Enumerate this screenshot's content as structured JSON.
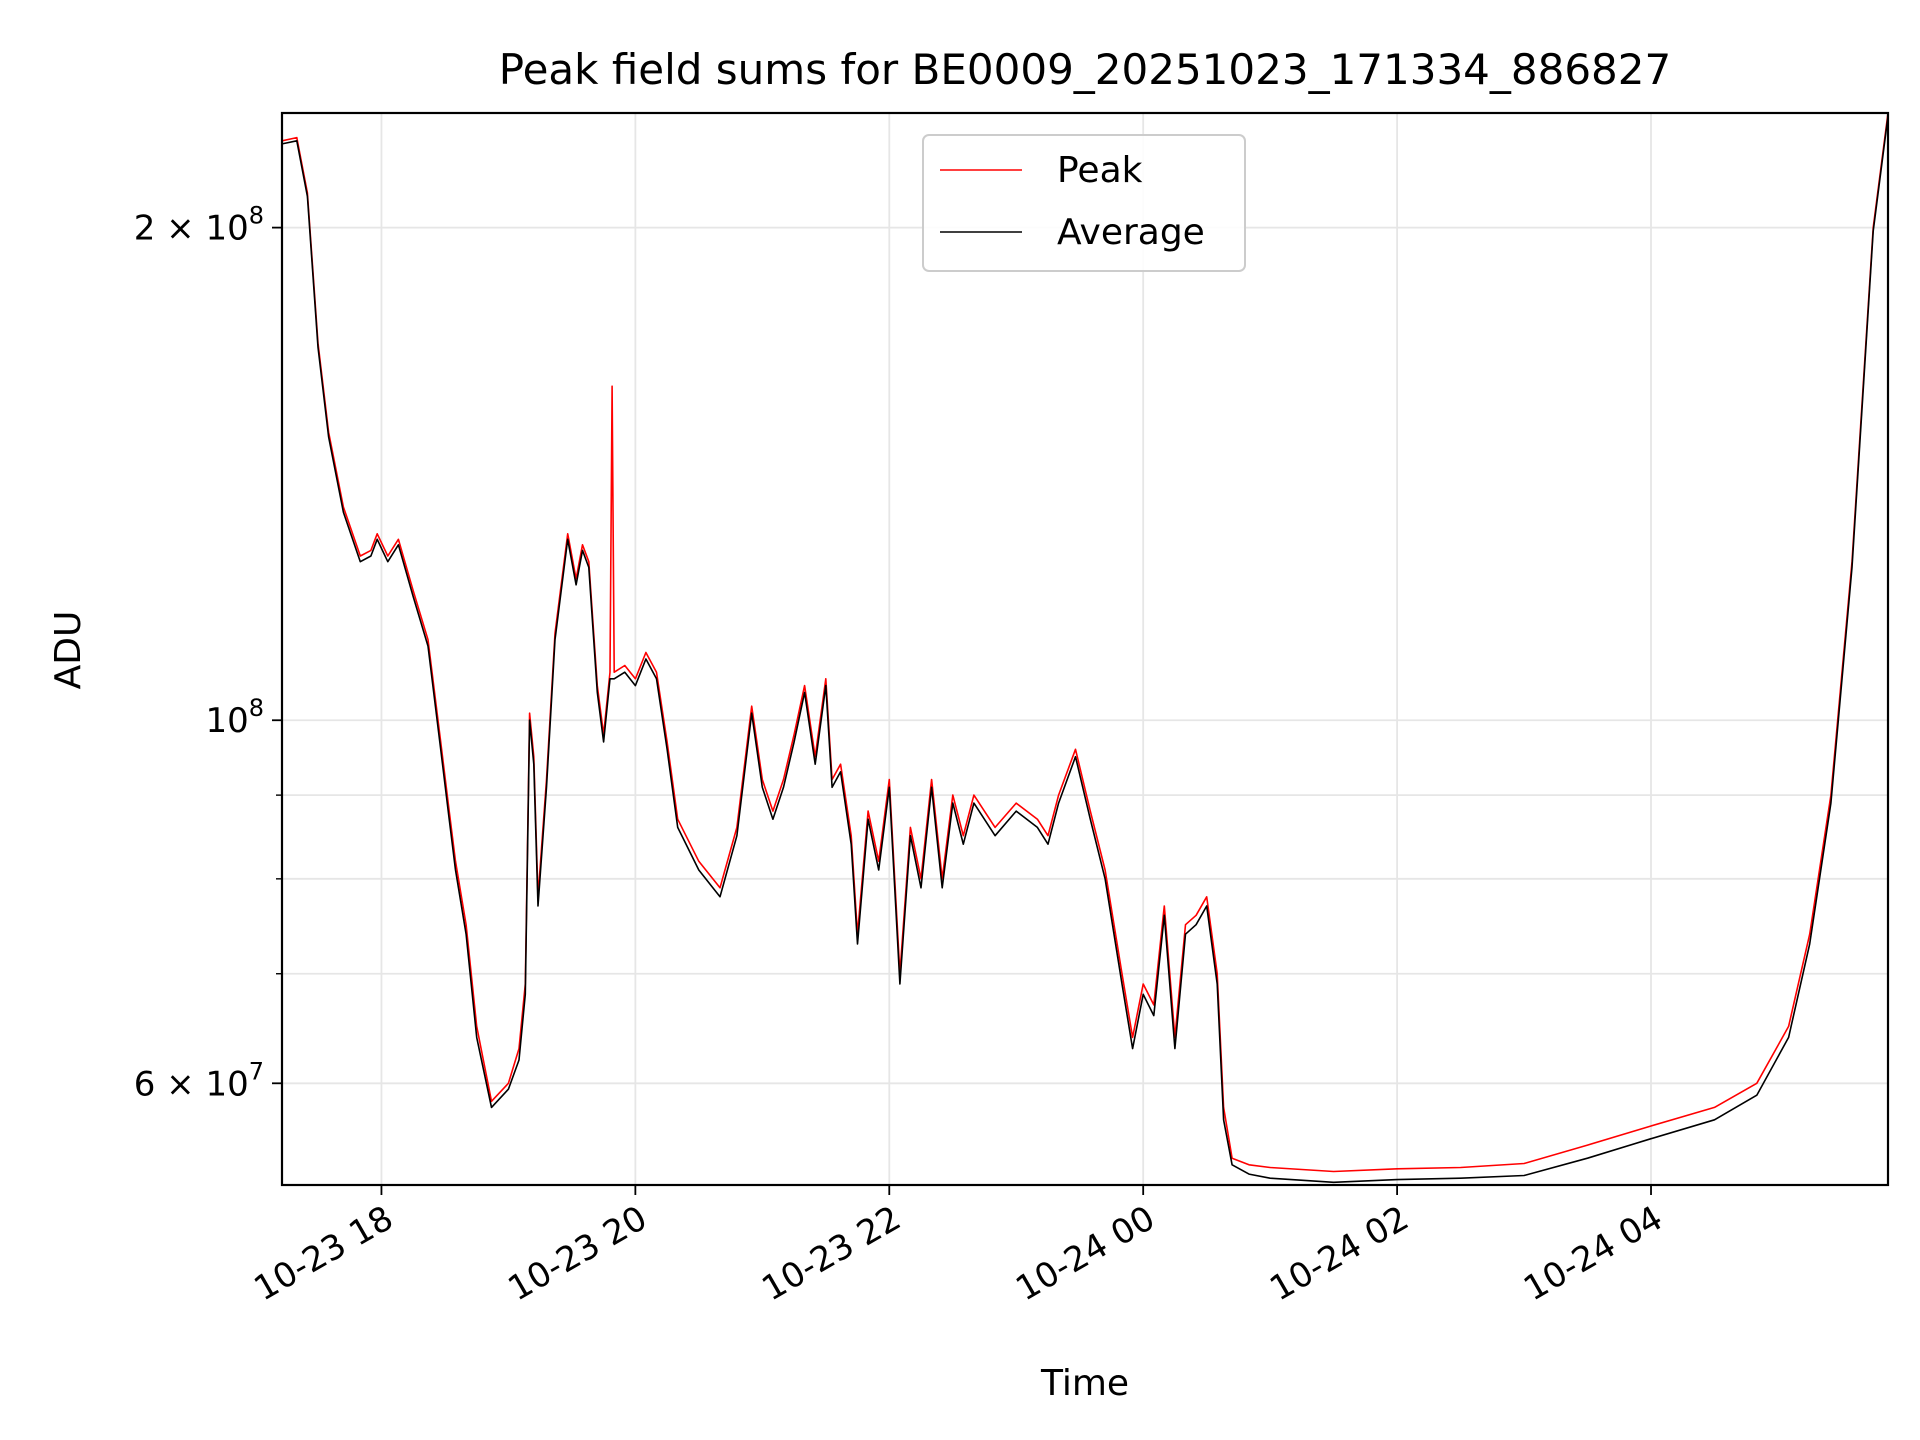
{
  "chart_data": {
    "type": "line",
    "title": "Peak field sums for BE0009_20251023_171334_886827",
    "xlabel": "Time",
    "ylabel": "ADU",
    "y_scale": "log",
    "ylim": [
      52000000,
      235000000
    ],
    "xlim": [
      "2025-10-23 17:13",
      "2025-10-24 05:52"
    ],
    "grid": true,
    "legend_position": "top-center",
    "x_ticks": [
      {
        "value": "2025-10-23 18:00",
        "label": "10-23 18"
      },
      {
        "value": "2025-10-23 20:00",
        "label": "10-23 20"
      },
      {
        "value": "2025-10-23 22:00",
        "label": "10-23 22"
      },
      {
        "value": "2025-10-24 00:00",
        "label": "10-24 00"
      },
      {
        "value": "2025-10-24 02:00",
        "label": "10-24 02"
      },
      {
        "value": "2025-10-24 04:00",
        "label": "10-24 04"
      }
    ],
    "y_ticks": [
      {
        "value": 60000000,
        "mantissa": "6",
        "exponent": "7"
      },
      {
        "value": 100000000,
        "mantissa": "",
        "exponent": "8"
      },
      {
        "value": 200000000,
        "mantissa": "2",
        "exponent": "8"
      }
    ],
    "y_minor_ticks": [
      70000000,
      80000000,
      90000000
    ],
    "series": [
      {
        "name": "Peak",
        "color": "#ff0000",
        "points": [
          [
            "2025-10-23 17:13",
            226000000.0
          ],
          [
            "2025-10-23 17:20",
            227000000.0
          ],
          [
            "2025-10-23 17:25",
            210000000.0
          ],
          [
            "2025-10-23 17:30",
            170000000.0
          ],
          [
            "2025-10-23 17:35",
            150000000.0
          ],
          [
            "2025-10-23 17:42",
            135000000.0
          ],
          [
            "2025-10-23 17:50",
            126000000.0
          ],
          [
            "2025-10-23 17:55",
            127000000.0
          ],
          [
            "2025-10-23 17:58",
            130000000.0
          ],
          [
            "2025-10-23 18:03",
            126000000.0
          ],
          [
            "2025-10-23 18:08",
            129000000.0
          ],
          [
            "2025-10-23 18:15",
            120000000.0
          ],
          [
            "2025-10-23 18:22",
            112000000.0
          ],
          [
            "2025-10-23 18:28",
            97000000.0
          ],
          [
            "2025-10-23 18:32",
            88000000.0
          ],
          [
            "2025-10-23 18:35",
            82000000.0
          ],
          [
            "2025-10-23 18:40",
            75000000.0
          ],
          [
            "2025-10-23 18:45",
            65000000.0
          ],
          [
            "2025-10-23 18:52",
            58500000.0
          ],
          [
            "2025-10-23 19:00",
            60000000.0
          ],
          [
            "2025-10-23 19:05",
            63000000.0
          ],
          [
            "2025-10-23 19:08",
            69000000.0
          ],
          [
            "2025-10-23 19:10",
            101000000.0
          ],
          [
            "2025-10-23 19:12",
            95000000.0
          ],
          [
            "2025-10-23 19:14",
            78000000.0
          ],
          [
            "2025-10-23 19:18",
            92000000.0
          ],
          [
            "2025-10-23 19:22",
            113000000.0
          ],
          [
            "2025-10-23 19:28",
            130000000.0
          ],
          [
            "2025-10-23 19:32",
            122000000.0
          ],
          [
            "2025-10-23 19:35",
            128000000.0
          ],
          [
            "2025-10-23 19:38",
            125000000.0
          ],
          [
            "2025-10-23 19:42",
            105000000.0
          ],
          [
            "2025-10-23 19:45",
            98000000.0
          ],
          [
            "2025-10-23 19:48",
            107000000.0
          ],
          [
            "2025-10-23 19:49",
            160000000.0
          ],
          [
            "2025-10-23 19:50",
            107000000.0
          ],
          [
            "2025-10-23 19:55",
            108000000.0
          ],
          [
            "2025-10-23 20:00",
            106000000.0
          ],
          [
            "2025-10-23 20:05",
            110000000.0
          ],
          [
            "2025-10-23 20:10",
            107000000.0
          ],
          [
            "2025-10-23 20:15",
            97000000.0
          ],
          [
            "2025-10-23 20:20",
            87000000.0
          ],
          [
            "2025-10-23 20:30",
            82000000.0
          ],
          [
            "2025-10-23 20:40",
            79000000.0
          ],
          [
            "2025-10-23 20:48",
            86000000.0
          ],
          [
            "2025-10-23 20:55",
            102000000.0
          ],
          [
            "2025-10-23 21:00",
            92000000.0
          ],
          [
            "2025-10-23 21:05",
            88000000.0
          ],
          [
            "2025-10-23 21:10",
            92000000.0
          ],
          [
            "2025-10-23 21:15",
            98000000.0
          ],
          [
            "2025-10-23 21:20",
            105000000.0
          ],
          [
            "2025-10-23 21:25",
            95000000.0
          ],
          [
            "2025-10-23 21:30",
            106000000.0
          ],
          [
            "2025-10-23 21:33",
            92000000.0
          ],
          [
            "2025-10-23 21:37",
            94000000.0
          ],
          [
            "2025-10-23 21:42",
            85000000.0
          ],
          [
            "2025-10-23 21:45",
            74000000.0
          ],
          [
            "2025-10-23 21:50",
            88000000.0
          ],
          [
            "2025-10-23 21:55",
            82000000.0
          ],
          [
            "2025-10-23 22:00",
            92000000.0
          ],
          [
            "2025-10-23 22:05",
            70000000.0
          ],
          [
            "2025-10-23 22:10",
            86000000.0
          ],
          [
            "2025-10-23 22:15",
            80000000.0
          ],
          [
            "2025-10-23 22:20",
            92000000.0
          ],
          [
            "2025-10-23 22:25",
            80000000.0
          ],
          [
            "2025-10-23 22:30",
            90000000.0
          ],
          [
            "2025-10-23 22:35",
            85000000.0
          ],
          [
            "2025-10-23 22:40",
            90000000.0
          ],
          [
            "2025-10-23 22:50",
            86000000.0
          ],
          [
            "2025-10-23 23:00",
            89000000.0
          ],
          [
            "2025-10-23 23:10",
            87000000.0
          ],
          [
            "2025-10-23 23:15",
            85000000.0
          ],
          [
            "2025-10-23 23:20",
            90000000.0
          ],
          [
            "2025-10-23 23:28",
            96000000.0
          ],
          [
            "2025-10-23 23:35",
            88000000.0
          ],
          [
            "2025-10-23 23:42",
            81000000.0
          ],
          [
            "2025-10-23 23:50",
            70000000.0
          ],
          [
            "2025-10-23 23:55",
            64000000.0
          ],
          [
            "2025-10-24 00:00",
            69000000.0
          ],
          [
            "2025-10-24 00:05",
            67000000.0
          ],
          [
            "2025-10-24 00:10",
            77000000.0
          ],
          [
            "2025-10-24 00:15",
            64000000.0
          ],
          [
            "2025-10-24 00:20",
            75000000.0
          ],
          [
            "2025-10-24 00:25",
            76000000.0
          ],
          [
            "2025-10-24 00:30",
            78000000.0
          ],
          [
            "2025-10-24 00:35",
            70000000.0
          ],
          [
            "2025-10-24 00:38",
            58000000.0
          ],
          [
            "2025-10-24 00:42",
            54000000.0
          ],
          [
            "2025-10-24 00:50",
            53500000.0
          ],
          [
            "2025-10-24 01:00",
            53300000.0
          ],
          [
            "2025-10-24 01:30",
            53000000.0
          ],
          [
            "2025-10-24 02:00",
            53200000.0
          ],
          [
            "2025-10-24 02:30",
            53300000.0
          ],
          [
            "2025-10-24 03:00",
            53600000.0
          ],
          [
            "2025-10-24 03:30",
            55000000.0
          ],
          [
            "2025-10-24 04:00",
            56500000.0
          ],
          [
            "2025-10-24 04:30",
            58000000.0
          ],
          [
            "2025-10-24 04:50",
            60000000.0
          ],
          [
            "2025-10-24 05:05",
            65000000.0
          ],
          [
            "2025-10-24 05:15",
            74000000.0
          ],
          [
            "2025-10-24 05:25",
            90000000.0
          ],
          [
            "2025-10-24 05:35",
            125000000.0
          ],
          [
            "2025-10-24 05:45",
            200000000.0
          ],
          [
            "2025-10-24 05:52",
            235000000.0
          ]
        ]
      },
      {
        "name": "Average",
        "color": "#000000",
        "points": [
          [
            "2025-10-23 17:13",
            225000000.0
          ],
          [
            "2025-10-23 17:20",
            226000000.0
          ],
          [
            "2025-10-23 17:25",
            209000000.0
          ],
          [
            "2025-10-23 17:30",
            169000000.0
          ],
          [
            "2025-10-23 17:35",
            149000000.0
          ],
          [
            "2025-10-23 17:42",
            134000000.0
          ],
          [
            "2025-10-23 17:50",
            125000000.0
          ],
          [
            "2025-10-23 17:55",
            126000000.0
          ],
          [
            "2025-10-23 17:58",
            129000000.0
          ],
          [
            "2025-10-23 18:03",
            125000000.0
          ],
          [
            "2025-10-23 18:08",
            128000000.0
          ],
          [
            "2025-10-23 18:15",
            119000000.0
          ],
          [
            "2025-10-23 18:22",
            111000000.0
          ],
          [
            "2025-10-23 18:28",
            96000000.0
          ],
          [
            "2025-10-23 18:32",
            87000000.0
          ],
          [
            "2025-10-23 18:35",
            81000000.0
          ],
          [
            "2025-10-23 18:40",
            74000000.0
          ],
          [
            "2025-10-23 18:45",
            64000000.0
          ],
          [
            "2025-10-23 18:52",
            58000000.0
          ],
          [
            "2025-10-23 19:00",
            59500000.0
          ],
          [
            "2025-10-23 19:05",
            62000000.0
          ],
          [
            "2025-10-23 19:08",
            68000000.0
          ],
          [
            "2025-10-23 19:10",
            100000000.0
          ],
          [
            "2025-10-23 19:12",
            94000000.0
          ],
          [
            "2025-10-23 19:14",
            77000000.0
          ],
          [
            "2025-10-23 19:18",
            91000000.0
          ],
          [
            "2025-10-23 19:22",
            112000000.0
          ],
          [
            "2025-10-23 19:28",
            129000000.0
          ],
          [
            "2025-10-23 19:32",
            121000000.0
          ],
          [
            "2025-10-23 19:35",
            127000000.0
          ],
          [
            "2025-10-23 19:38",
            124000000.0
          ],
          [
            "2025-10-23 19:42",
            104000000.0
          ],
          [
            "2025-10-23 19:45",
            97000000.0
          ],
          [
            "2025-10-23 19:48",
            106000000.0
          ],
          [
            "2025-10-23 19:49",
            106000000.0
          ],
          [
            "2025-10-23 19:50",
            106000000.0
          ],
          [
            "2025-10-23 19:55",
            107000000.0
          ],
          [
            "2025-10-23 20:00",
            105000000.0
          ],
          [
            "2025-10-23 20:05",
            109000000.0
          ],
          [
            "2025-10-23 20:10",
            106000000.0
          ],
          [
            "2025-10-23 20:15",
            96000000.0
          ],
          [
            "2025-10-23 20:20",
            86000000.0
          ],
          [
            "2025-10-23 20:30",
            81000000.0
          ],
          [
            "2025-10-23 20:40",
            78000000.0
          ],
          [
            "2025-10-23 20:48",
            85000000.0
          ],
          [
            "2025-10-23 20:55",
            101000000.0
          ],
          [
            "2025-10-23 21:00",
            91000000.0
          ],
          [
            "2025-10-23 21:05",
            87000000.0
          ],
          [
            "2025-10-23 21:10",
            91000000.0
          ],
          [
            "2025-10-23 21:15",
            97000000.0
          ],
          [
            "2025-10-23 21:20",
            104000000.0
          ],
          [
            "2025-10-23 21:25",
            94000000.0
          ],
          [
            "2025-10-23 21:30",
            105000000.0
          ],
          [
            "2025-10-23 21:33",
            91000000.0
          ],
          [
            "2025-10-23 21:37",
            93000000.0
          ],
          [
            "2025-10-23 21:42",
            84000000.0
          ],
          [
            "2025-10-23 21:45",
            73000000.0
          ],
          [
            "2025-10-23 21:50",
            87000000.0
          ],
          [
            "2025-10-23 21:55",
            81000000.0
          ],
          [
            "2025-10-23 22:00",
            91000000.0
          ],
          [
            "2025-10-23 22:05",
            69000000.0
          ],
          [
            "2025-10-23 22:10",
            85000000.0
          ],
          [
            "2025-10-23 22:15",
            79000000.0
          ],
          [
            "2025-10-23 22:20",
            91000000.0
          ],
          [
            "2025-10-23 22:25",
            79000000.0
          ],
          [
            "2025-10-23 22:30",
            89000000.0
          ],
          [
            "2025-10-23 22:35",
            84000000.0
          ],
          [
            "2025-10-23 22:40",
            89000000.0
          ],
          [
            "2025-10-23 22:50",
            85000000.0
          ],
          [
            "2025-10-23 23:00",
            88000000.0
          ],
          [
            "2025-10-23 23:10",
            86000000.0
          ],
          [
            "2025-10-23 23:15",
            84000000.0
          ],
          [
            "2025-10-23 23:20",
            89000000.0
          ],
          [
            "2025-10-23 23:28",
            95000000.0
          ],
          [
            "2025-10-23 23:35",
            87000000.0
          ],
          [
            "2025-10-23 23:42",
            80000000.0
          ],
          [
            "2025-10-23 23:50",
            69000000.0
          ],
          [
            "2025-10-23 23:55",
            63000000.0
          ],
          [
            "2025-10-24 00:00",
            68000000.0
          ],
          [
            "2025-10-24 00:05",
            66000000.0
          ],
          [
            "2025-10-24 00:10",
            76000000.0
          ],
          [
            "2025-10-24 00:15",
            63000000.0
          ],
          [
            "2025-10-24 00:20",
            74000000.0
          ],
          [
            "2025-10-24 00:25",
            75000000.0
          ],
          [
            "2025-10-24 00:30",
            77000000.0
          ],
          [
            "2025-10-24 00:35",
            69000000.0
          ],
          [
            "2025-10-24 00:38",
            57000000.0
          ],
          [
            "2025-10-24 00:42",
            53500000.0
          ],
          [
            "2025-10-24 00:50",
            52800000.0
          ],
          [
            "2025-10-24 01:00",
            52500000.0
          ],
          [
            "2025-10-24 01:30",
            52200000.0
          ],
          [
            "2025-10-24 02:00",
            52400000.0
          ],
          [
            "2025-10-24 02:30",
            52500000.0
          ],
          [
            "2025-10-24 03:00",
            52700000.0
          ],
          [
            "2025-10-24 03:30",
            54000000.0
          ],
          [
            "2025-10-24 04:00",
            55500000.0
          ],
          [
            "2025-10-24 04:30",
            57000000.0
          ],
          [
            "2025-10-24 04:50",
            59000000.0
          ],
          [
            "2025-10-24 05:05",
            64000000.0
          ],
          [
            "2025-10-24 05:15",
            73000000.0
          ],
          [
            "2025-10-24 05:25",
            89000000.0
          ],
          [
            "2025-10-24 05:35",
            124000000.0
          ],
          [
            "2025-10-24 05:45",
            199000000.0
          ],
          [
            "2025-10-24 05:52",
            234000000.0
          ]
        ]
      }
    ]
  }
}
